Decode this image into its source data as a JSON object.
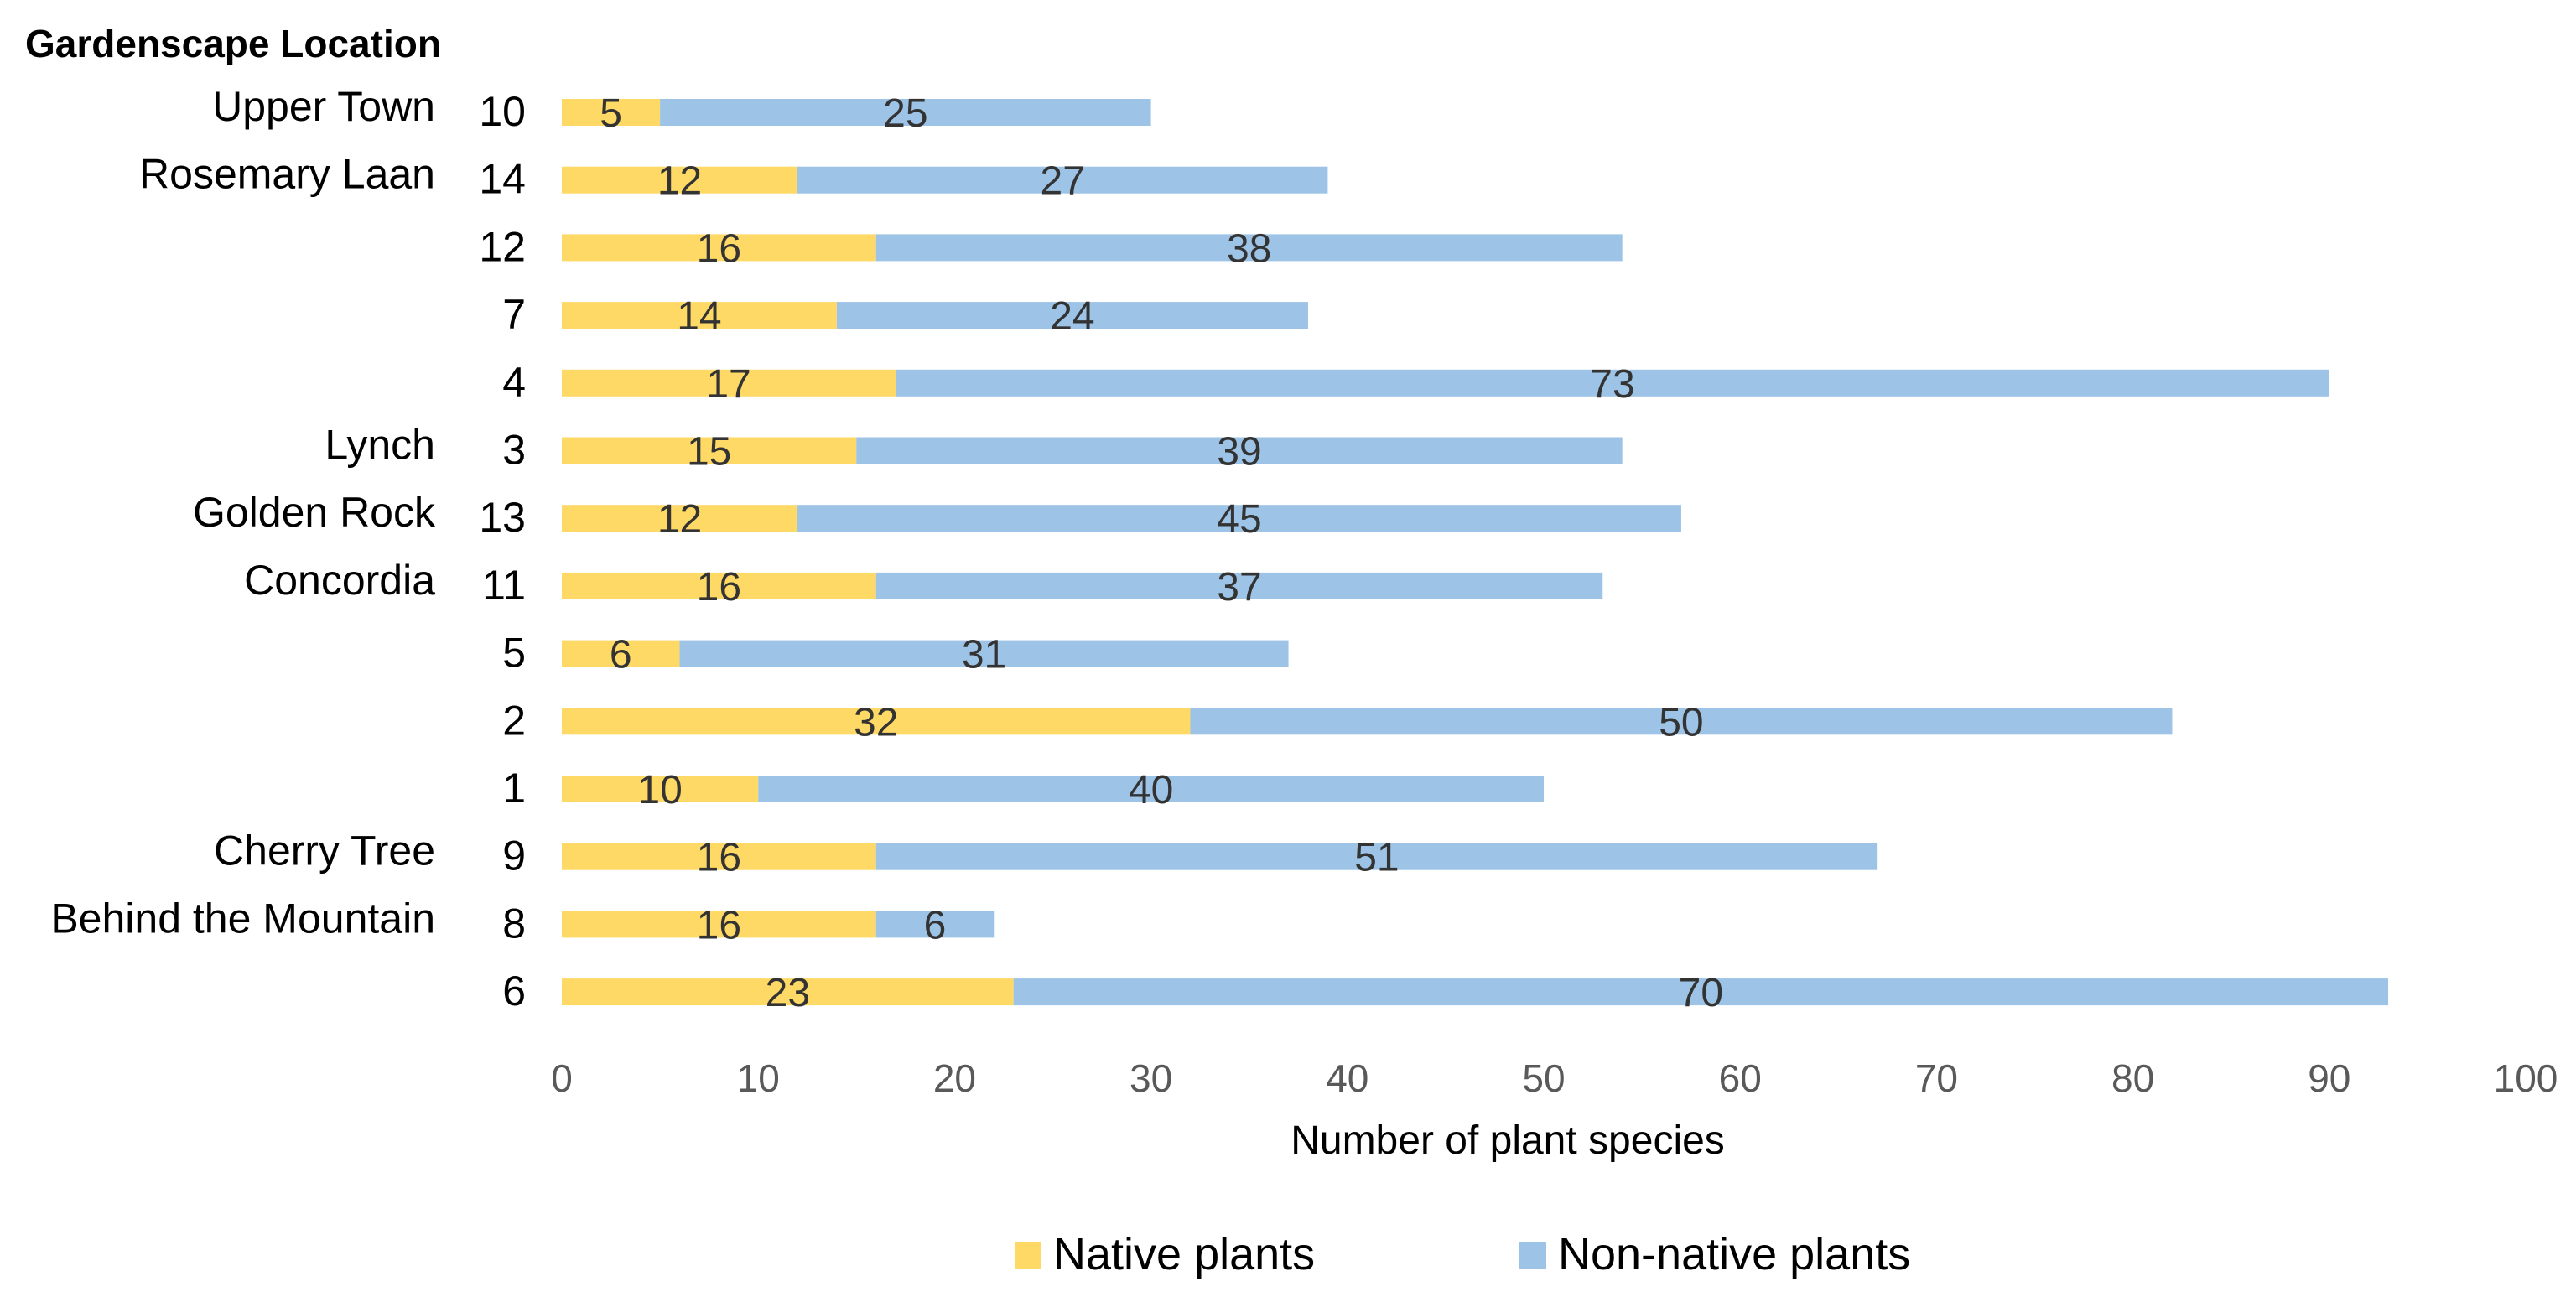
{
  "chart_data": {
    "type": "bar",
    "orientation": "horizontal",
    "stacked": true,
    "title": "Gardenscape Location",
    "xlabel": "Number of plant species",
    "ylabel": "",
    "xlim": [
      0,
      100
    ],
    "xticks": [
      "0",
      "10",
      "20",
      "30",
      "40",
      "50",
      "60",
      "70",
      "80",
      "90",
      "100"
    ],
    "grid": false,
    "legend_position": "bottom",
    "categories": [
      {
        "site": "10",
        "location": "Upper Town"
      },
      {
        "site": "14",
        "location": "Rosemary Laan"
      },
      {
        "site": "12",
        "location": ""
      },
      {
        "site": "7",
        "location": ""
      },
      {
        "site": "4",
        "location": ""
      },
      {
        "site": "3",
        "location": "Lynch"
      },
      {
        "site": "13",
        "location": "Golden Rock"
      },
      {
        "site": "11",
        "location": "Concordia"
      },
      {
        "site": "5",
        "location": ""
      },
      {
        "site": "2",
        "location": ""
      },
      {
        "site": "1",
        "location": ""
      },
      {
        "site": "9",
        "location": "Cherry Tree"
      },
      {
        "site": "8",
        "location": "Behind the Mountain"
      },
      {
        "site": "6",
        "location": ""
      }
    ],
    "series": [
      {
        "name": "Native plants",
        "color": "#FFD966",
        "values": [
          5,
          12,
          16,
          14,
          17,
          15,
          12,
          16,
          6,
          32,
          10,
          16,
          16,
          23
        ]
      },
      {
        "name": "Non-native plants",
        "color": "#9DC3E6",
        "values": [
          25,
          27,
          38,
          24,
          73,
          39,
          45,
          37,
          31,
          50,
          40,
          51,
          6,
          70
        ]
      }
    ]
  }
}
